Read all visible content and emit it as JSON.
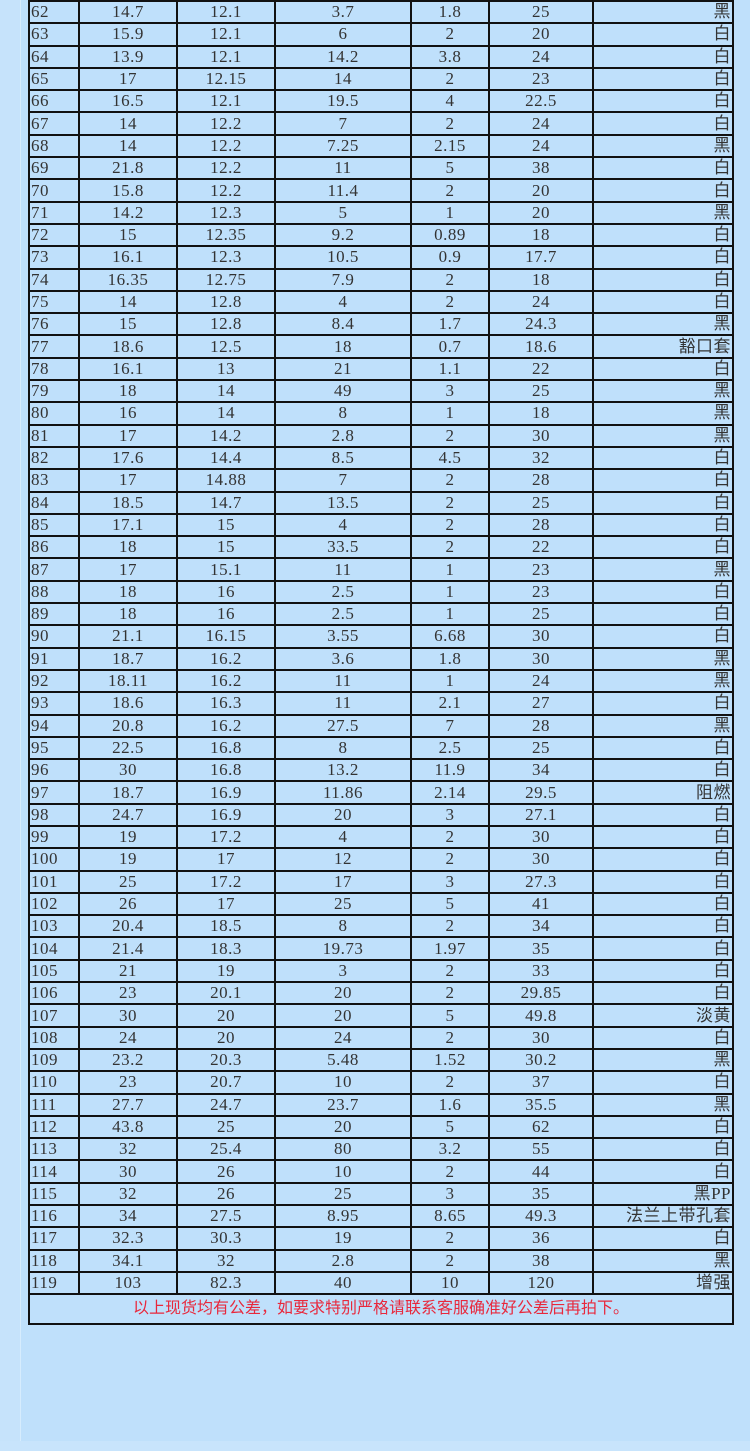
{
  "table": {
    "rows": [
      [
        "62",
        "14.7",
        "12.1",
        "3.7",
        "1.8",
        "25",
        "黑"
      ],
      [
        "63",
        "15.9",
        "12.1",
        "6",
        "2",
        "20",
        "白"
      ],
      [
        "64",
        "13.9",
        "12.1",
        "14.2",
        "3.8",
        "24",
        "白"
      ],
      [
        "65",
        "17",
        "12.15",
        "14",
        "2",
        "23",
        "白"
      ],
      [
        "66",
        "16.5",
        "12.1",
        "19.5",
        "4",
        "22.5",
        "白"
      ],
      [
        "67",
        "14",
        "12.2",
        "7",
        "2",
        "24",
        "白"
      ],
      [
        "68",
        "14",
        "12.2",
        "7.25",
        "2.15",
        "24",
        "黑"
      ],
      [
        "69",
        "21.8",
        "12.2",
        "11",
        "5",
        "38",
        "白"
      ],
      [
        "70",
        "15.8",
        "12.2",
        "11.4",
        "2",
        "20",
        "白"
      ],
      [
        "71",
        "14.2",
        "12.3",
        "5",
        "1",
        "20",
        "黑"
      ],
      [
        "72",
        "15",
        "12.35",
        "9.2",
        "0.89",
        "18",
        "白"
      ],
      [
        "73",
        "16.1",
        "12.3",
        "10.5",
        "0.9",
        "17.7",
        "白"
      ],
      [
        "74",
        "16.35",
        "12.75",
        "7.9",
        "2",
        "18",
        "白"
      ],
      [
        "75",
        "14",
        "12.8",
        "4",
        "2",
        "24",
        "白"
      ],
      [
        "76",
        "15",
        "12.8",
        "8.4",
        "1.7",
        "24.3",
        "黑"
      ],
      [
        "77",
        "18.6",
        "12.5",
        "18",
        "0.7",
        "18.6",
        "豁口套"
      ],
      [
        "78",
        "16.1",
        "13",
        "21",
        "1.1",
        "22",
        "白"
      ],
      [
        "79",
        "18",
        "14",
        "49",
        "3",
        "25",
        "黑"
      ],
      [
        "80",
        "16",
        "14",
        "8",
        "1",
        "18",
        "黑"
      ],
      [
        "81",
        "17",
        "14.2",
        "2.8",
        "2",
        "30",
        "黑"
      ],
      [
        "82",
        "17.6",
        "14.4",
        "8.5",
        "4.5",
        "32",
        "白"
      ],
      [
        "83",
        "17",
        "14.88",
        "7",
        "2",
        "28",
        "白"
      ],
      [
        "84",
        "18.5",
        "14.7",
        "13.5",
        "2",
        "25",
        "白"
      ],
      [
        "85",
        "17.1",
        "15",
        "4",
        "2",
        "28",
        "白"
      ],
      [
        "86",
        "18",
        "15",
        "33.5",
        "2",
        "22",
        "白"
      ],
      [
        "87",
        "17",
        "15.1",
        "11",
        "1",
        "23",
        "黑"
      ],
      [
        "88",
        "18",
        "16",
        "2.5",
        "1",
        "23",
        "白"
      ],
      [
        "89",
        "18",
        "16",
        "2.5",
        "1",
        "25",
        "白"
      ],
      [
        "90",
        "21.1",
        "16.15",
        "3.55",
        "6.68",
        "30",
        "白"
      ],
      [
        "91",
        "18.7",
        "16.2",
        "3.6",
        "1.8",
        "30",
        "黑"
      ],
      [
        "92",
        "18.11",
        "16.2",
        "11",
        "1",
        "24",
        "黑"
      ],
      [
        "93",
        "18.6",
        "16.3",
        "11",
        "2.1",
        "27",
        "白"
      ],
      [
        "94",
        "20.8",
        "16.2",
        "27.5",
        "7",
        "28",
        "黑"
      ],
      [
        "95",
        "22.5",
        "16.8",
        "8",
        "2.5",
        "25",
        "白"
      ],
      [
        "96",
        "30",
        "16.8",
        "13.2",
        "11.9",
        "34",
        "白"
      ],
      [
        "97",
        "18.7",
        "16.9",
        "11.86",
        "2.14",
        "29.5",
        "阻燃"
      ],
      [
        "98",
        "24.7",
        "16.9",
        "20",
        "3",
        "27.1",
        "白"
      ],
      [
        "99",
        "19",
        "17.2",
        "4",
        "2",
        "30",
        "白"
      ],
      [
        "100",
        "19",
        "17",
        "12",
        "2",
        "30",
        "白"
      ],
      [
        "101",
        "25",
        "17.2",
        "17",
        "3",
        "27.3",
        "白"
      ],
      [
        "102",
        "26",
        "17",
        "25",
        "5",
        "41",
        "白"
      ],
      [
        "103",
        "20.4",
        "18.5",
        "8",
        "2",
        "34",
        "白"
      ],
      [
        "104",
        "21.4",
        "18.3",
        "19.73",
        "1.97",
        "35",
        "白"
      ],
      [
        "105",
        "21",
        "19",
        "3",
        "2",
        "33",
        "白"
      ],
      [
        "106",
        "23",
        "20.1",
        "20",
        "2",
        "29.85",
        "白"
      ],
      [
        "107",
        "30",
        "20",
        "20",
        "5",
        "49.8",
        "淡黄"
      ],
      [
        "108",
        "24",
        "20",
        "24",
        "2",
        "30",
        "白"
      ],
      [
        "109",
        "23.2",
        "20.3",
        "5.48",
        "1.52",
        "30.2",
        "黑"
      ],
      [
        "110",
        "23",
        "20.7",
        "10",
        "2",
        "37",
        "白"
      ],
      [
        "111",
        "27.7",
        "24.7",
        "23.7",
        "1.6",
        "35.5",
        "黑"
      ],
      [
        "112",
        "43.8",
        "25",
        "20",
        "5",
        "62",
        "白"
      ],
      [
        "113",
        "32",
        "25.4",
        "80",
        "3.2",
        "55",
        "白"
      ],
      [
        "114",
        "30",
        "26",
        "10",
        "2",
        "44",
        "白"
      ],
      [
        "115",
        "32",
        "26",
        "25",
        "3",
        "35",
        "黑PP"
      ],
      [
        "116",
        "34",
        "27.5",
        "8.95",
        "8.65",
        "49.3",
        "法兰上带孔套"
      ],
      [
        "117",
        "32.3",
        "30.3",
        "19",
        "2",
        "36",
        "白"
      ],
      [
        "118",
        "34.1",
        "32",
        "2.8",
        "2",
        "38",
        "黑"
      ],
      [
        "119",
        "103",
        "82.3",
        "40",
        "10",
        "120",
        "增强"
      ]
    ],
    "note": "以上现货均有公差，如要求特别严格请联系客服确准好公差后再拍下。"
  },
  "colors": {
    "background": "#bfe0fb",
    "border": "#111111",
    "note": "#e8283c"
  }
}
